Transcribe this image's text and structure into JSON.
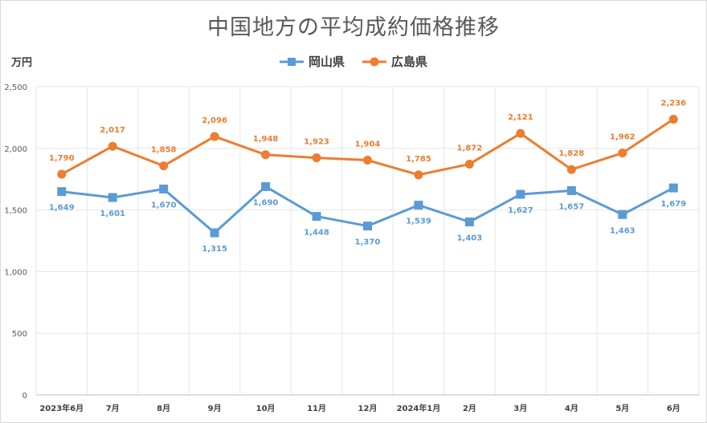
{
  "chart_data": {
    "type": "line",
    "title": "中国地方の平均成約価格推移",
    "ylabel": "万円",
    "xlabel": "",
    "categories": [
      "2023年6月",
      "7月",
      "8月",
      "9月",
      "10月",
      "11月",
      "12月",
      "2024年1月",
      "2月",
      "3月",
      "4月",
      "5月",
      "6月"
    ],
    "ylim": [
      0,
      2500
    ],
    "yticks": [
      0,
      500,
      1000,
      1500,
      2000,
      2500
    ],
    "ytick_labels": [
      "0",
      "500",
      "1,000",
      "1,500",
      "2,000",
      "2,500"
    ],
    "grid": true,
    "legend_position": "top",
    "series": [
      {
        "name": "岡山県",
        "color": "#5b9bd5",
        "marker": "square",
        "values": [
          1649,
          1601,
          1670,
          1315,
          1690,
          1448,
          1370,
          1539,
          1403,
          1627,
          1657,
          1463,
          1679
        ],
        "labels": [
          "1,649",
          "1,601",
          "1,670",
          "1,315",
          "1,690",
          "1,448",
          "1,370",
          "1,539",
          "1,403",
          "1,627",
          "1,657",
          "1,463",
          "1,679"
        ]
      },
      {
        "name": "広島県",
        "color": "#ed7d31",
        "marker": "circle",
        "values": [
          1790,
          2017,
          1858,
          2096,
          1948,
          1923,
          1904,
          1785,
          1872,
          2121,
          1828,
          1962,
          2236
        ],
        "labels": [
          "1,790",
          "2,017",
          "1,858",
          "2,096",
          "1,948",
          "1,923",
          "1,904",
          "1,785",
          "1,872",
          "2,121",
          "1,828",
          "1,962",
          "2,236"
        ]
      }
    ]
  }
}
